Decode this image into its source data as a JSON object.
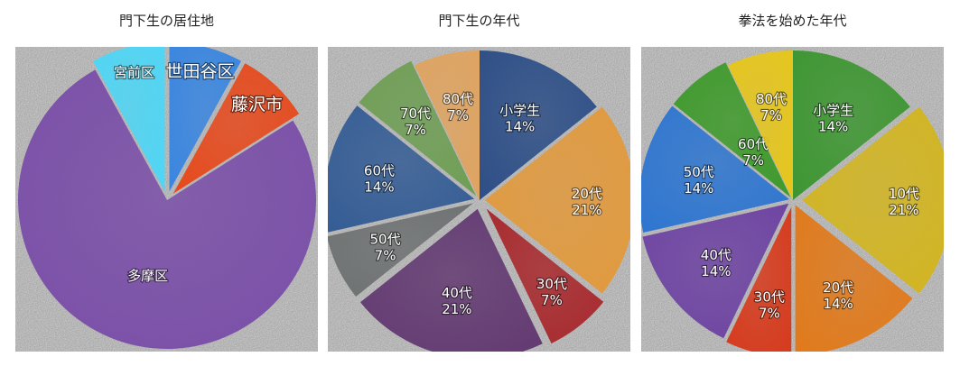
{
  "chart_data": [
    {
      "type": "pie",
      "title": "門下生の居住地",
      "slices": [
        {
          "label": "世田谷区",
          "pct": "",
          "value": 8,
          "color": "#3a86e0"
        },
        {
          "label": "藤沢市",
          "pct": "",
          "value": 8,
          "color": "#e64a1d"
        },
        {
          "label": "多摩区",
          "pct": "",
          "value": 76,
          "color": "#7a4fa8"
        },
        {
          "label": "宮前区",
          "pct": "",
          "value": 8,
          "color": "#4fd6f5"
        }
      ]
    },
    {
      "type": "pie",
      "title": "門下生の年代",
      "slices": [
        {
          "label": "小学生",
          "pct": "14%",
          "value": 14,
          "color": "#2e4f87"
        },
        {
          "label": "20代",
          "pct": "21%",
          "value": 21,
          "color": "#e19a3e"
        },
        {
          "label": "30代",
          "pct": "7%",
          "value": 7,
          "color": "#a82a2e"
        },
        {
          "label": "40代",
          "pct": "21%",
          "value": 21,
          "color": "#633a72"
        },
        {
          "label": "50代",
          "pct": "7%",
          "value": 7,
          "color": "#6f7272"
        },
        {
          "label": "60代",
          "pct": "14%",
          "value": 14,
          "color": "#355d95"
        },
        {
          "label": "70代",
          "pct": "7%",
          "value": 7,
          "color": "#6f9e55"
        },
        {
          "label": "80代",
          "pct": "7%",
          "value": 7,
          "color": "#dfa461"
        }
      ]
    },
    {
      "type": "pie",
      "title": "拳法を始めた年代",
      "slices": [
        {
          "label": "小学生",
          "pct": "14%",
          "value": 14,
          "color": "#3e9632"
        },
        {
          "label": "10代",
          "pct": "21%",
          "value": 21,
          "color": "#d2b522"
        },
        {
          "label": "20代",
          "pct": "14%",
          "value": 14,
          "color": "#e07a1c"
        },
        {
          "label": "30代",
          "pct": "7%",
          "value": 7,
          "color": "#d63b1d"
        },
        {
          "label": "40代",
          "pct": "14%",
          "value": 14,
          "color": "#6e44a2"
        },
        {
          "label": "50代",
          "pct": "14%",
          "value": 14,
          "color": "#2f76d0"
        },
        {
          "label": "60代",
          "pct": "7%",
          "value": 7,
          "color": "#3f9a2c"
        },
        {
          "label": "80代",
          "pct": "7%",
          "value": 7,
          "color": "#e6c61c"
        }
      ]
    }
  ]
}
